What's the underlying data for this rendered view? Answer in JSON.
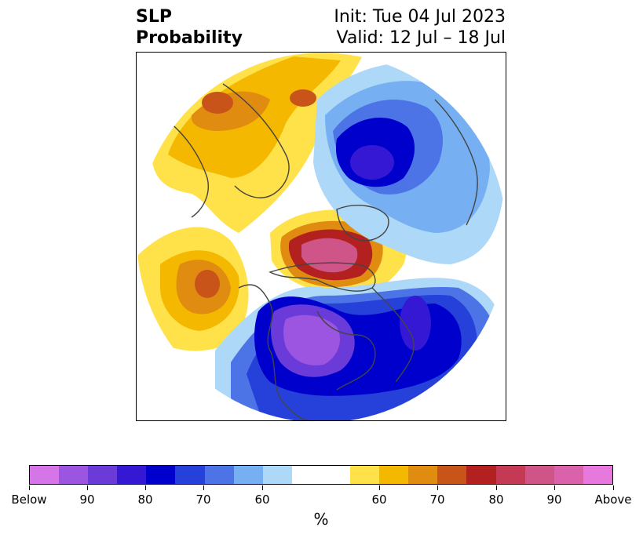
{
  "title": {
    "line1": "SLP",
    "line2": "Probability"
  },
  "init_label": "Init: Tue 04 Jul 2023",
  "valid_label": "Valid: 12 Jul – 18 Jul",
  "colorbar": {
    "colors": [
      "#d675e8",
      "#9b55e0",
      "#6a3bd8",
      "#3418d4",
      "#0000cc",
      "#2641da",
      "#4d74e6",
      "#77b0f2",
      "#add8f7",
      "#ffffff",
      "#ffffff",
      "#ffe24a",
      "#f5b800",
      "#e08c10",
      "#c8541a",
      "#b22020",
      "#c43a55",
      "#cf5588",
      "#da62ab",
      "#e678de"
    ],
    "tick_labels": [
      "Below",
      "90",
      "80",
      "70",
      "60",
      "60",
      "70",
      "80",
      "90",
      "Above"
    ],
    "unit": "%"
  },
  "map_colors": {
    "above_light": "#ffe24a",
    "above_mid": "#f5b800",
    "above_orange": "#e08c10",
    "above_dark": "#c8541a",
    "above_red": "#b22020",
    "above_pink": "#cf5588",
    "below_light": "#add8f7",
    "below_sky": "#77b0f2",
    "below_blue": "#4d74e6",
    "below_mid": "#2641da",
    "below_deep": "#0000cc",
    "below_purple": "#6a3bd8",
    "below_violet": "#9b55e0"
  }
}
